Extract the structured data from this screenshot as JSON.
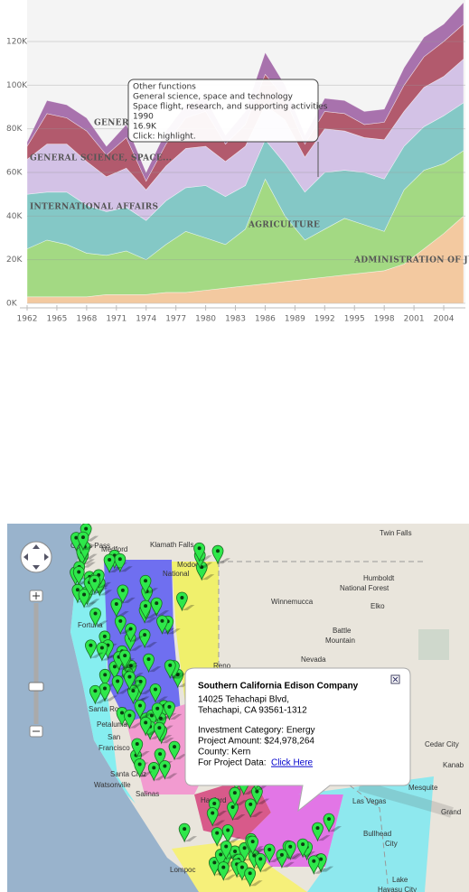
{
  "chart_data": {
    "type": "stacked-area",
    "x": [
      1962,
      1964,
      1966,
      1968,
      1970,
      1972,
      1974,
      1976,
      1978,
      1980,
      1982,
      1984,
      1986,
      1988,
      1990,
      1992,
      1994,
      1996,
      1998,
      2000,
      2002,
      2004,
      2006
    ],
    "xlim": [
      1962,
      2006
    ],
    "xticks": [
      1962,
      1965,
      1968,
      1971,
      1974,
      1977,
      1980,
      1983,
      1986,
      1989,
      1992,
      1995,
      1998,
      2001,
      2004
    ],
    "ylim": [
      0,
      140000
    ],
    "yticks": [
      {
        "value": 0,
        "label": "0K"
      },
      {
        "value": 20000,
        "label": "20K"
      },
      {
        "value": 40000,
        "label": "40K"
      },
      {
        "value": 60000,
        "label": "60K"
      },
      {
        "value": 80000,
        "label": "80K"
      },
      {
        "value": 100000,
        "label": "100K"
      },
      {
        "value": 120000,
        "label": "120K"
      }
    ],
    "grid": true,
    "series": [
      {
        "name": "ADMINISTRATION OF JUS...",
        "color": "#f3c9a0",
        "values": [
          3000,
          3000,
          3000,
          3000,
          4000,
          4000,
          4000,
          5000,
          5000,
          6000,
          7000,
          8000,
          9000,
          10000,
          11000,
          12000,
          13000,
          14000,
          15000,
          18000,
          25000,
          32000,
          40000
        ]
      },
      {
        "name": "AGRICULTURE",
        "color": "#a3d983",
        "values": [
          22000,
          26000,
          24000,
          20000,
          18000,
          20000,
          16000,
          22000,
          28000,
          24000,
          20000,
          26000,
          48000,
          30000,
          18000,
          22000,
          26000,
          22000,
          18000,
          34000,
          36000,
          32000,
          30000
        ]
      },
      {
        "name": "INTERNATIONAL AFFAIRS",
        "color": "#84c8c6",
        "values": [
          25000,
          22000,
          24000,
          22000,
          20000,
          20000,
          18000,
          20000,
          20000,
          24000,
          22000,
          20000,
          18000,
          24000,
          22000,
          26000,
          22000,
          24000,
          24000,
          20000,
          20000,
          22000,
          22000
        ]
      },
      {
        "name": "GENERAL SCIENCE, SPACE...",
        "color": "#d3c2e6",
        "values": [
          16000,
          22000,
          22000,
          20000,
          16000,
          18000,
          14000,
          16000,
          18000,
          18000,
          16000,
          18000,
          16000,
          20000,
          16000,
          20000,
          18000,
          16000,
          18000,
          16000,
          18000,
          18000,
          20000
        ]
      },
      {
        "name": "GENERA",
        "color": "#b25a6d",
        "values": [
          6000,
          14000,
          12000,
          14000,
          10000,
          14000,
          4000,
          10000,
          14000,
          16000,
          8000,
          10000,
          14000,
          10000,
          6000,
          8000,
          8000,
          6000,
          8000,
          12000,
          14000,
          16000,
          16000
        ]
      },
      {
        "color": "#a872ad",
        "values": [
          2000,
          6000,
          6000,
          6000,
          4000,
          6000,
          4000,
          6000,
          6000,
          6000,
          4000,
          6000,
          10000,
          6000,
          4000,
          6000,
          6000,
          6000,
          6000,
          8000,
          9000,
          8000,
          10000
        ]
      }
    ],
    "tooltip": {
      "lines": [
        "Other functions",
        "General science, space and technology",
        "Space flight, research, and supporting activities",
        "1990",
        "16.9K",
        "Click: highlight."
      ]
    }
  },
  "map": {
    "places": [
      "Grants Pass",
      "Medford",
      "Klamath Falls",
      "Modoc",
      "National",
      "Twin Falls",
      "Humboldt",
      "National Forest",
      "Winnemucca",
      "Elko",
      "Battle",
      "Mountain",
      "Nevada",
      "Reno",
      "Santa Rosa",
      "Petaluma",
      "San",
      "Francisco",
      "Santa Cruz",
      "Watsonville",
      "Salinas",
      "Hanford",
      "Las Vegas",
      "Mesquite",
      "Bullhead",
      "City",
      "Lompoc",
      "Fortuna",
      "Lake",
      "Havasu City",
      "Cedar City",
      "Grand",
      "Kanab"
    ],
    "popup": {
      "title": "Southern California Edison Company",
      "address_line1": "14025 Tehachapi Blvd,",
      "address_line2": "Tehachapi, CA 93561-1312",
      "category": "Investment Category: Energy",
      "amount": "Project Amount: $24,978,264",
      "county": "County: Kern",
      "link_prefix": "For Project Data:",
      "link_text": "Click Here"
    }
  }
}
